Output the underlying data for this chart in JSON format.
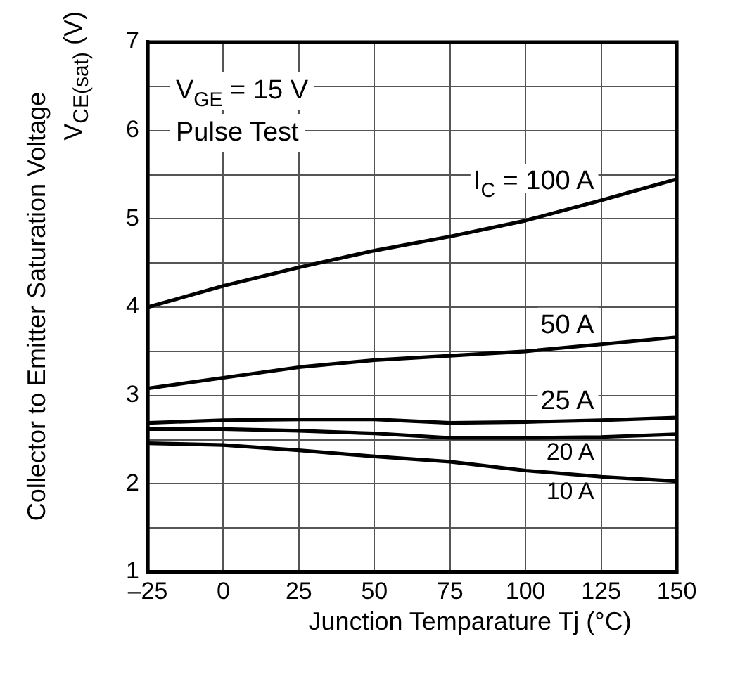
{
  "chart_data": {
    "type": "line",
    "xlabel": "Junction Temparature   Tj (°C)",
    "ylabel": "Collector to Emitter Saturation Voltage\nV$_{CE(sat)}$  (V)",
    "x": [
      -25,
      0,
      25,
      50,
      75,
      100,
      125,
      150
    ],
    "series": [
      {
        "name": "I$_{C}$ = 100 A",
        "color": "#000000",
        "values": [
          4.0,
          4.24,
          4.45,
          4.64,
          4.8,
          4.98,
          5.21,
          5.45
        ]
      },
      {
        "name": "50 A",
        "color": "#000000",
        "values": [
          3.08,
          3.2,
          3.32,
          3.4,
          3.45,
          3.5,
          3.58,
          3.66
        ]
      },
      {
        "name": "25 A",
        "color": "#000000",
        "values": [
          2.69,
          2.72,
          2.73,
          2.73,
          2.69,
          2.7,
          2.72,
          2.75
        ]
      },
      {
        "name": "20 A",
        "color": "#000000",
        "values": [
          2.62,
          2.62,
          2.6,
          2.57,
          2.52,
          2.52,
          2.53,
          2.56
        ]
      },
      {
        "name": "10 A",
        "color": "#000000",
        "values": [
          2.46,
          2.44,
          2.38,
          2.31,
          2.25,
          2.15,
          2.08,
          2.03
        ]
      }
    ],
    "annotations": [
      "V$_{GE}$ = 15 V",
      "Pulse Test"
    ],
    "xlim": [
      -25,
      150
    ],
    "xticks": [
      {
        "value": -25,
        "label": "–25"
      },
      0,
      25,
      50,
      75,
      100,
      125,
      150
    ],
    "ylim": [
      1,
      7
    ],
    "yticks": [
      1,
      {
        "value": 1.5,
        "label": null
      },
      2,
      {
        "value": 2.5,
        "label": null
      },
      3,
      {
        "value": 3.5,
        "label": null
      },
      4,
      {
        "value": 4.5,
        "label": null
      },
      5,
      {
        "value": 5.5,
        "label": null
      },
      6,
      {
        "value": 6.5,
        "label": null
      },
      7
    ],
    "grid": true,
    "legend": false,
    "marker": "none",
    "line_style": "solid"
  }
}
